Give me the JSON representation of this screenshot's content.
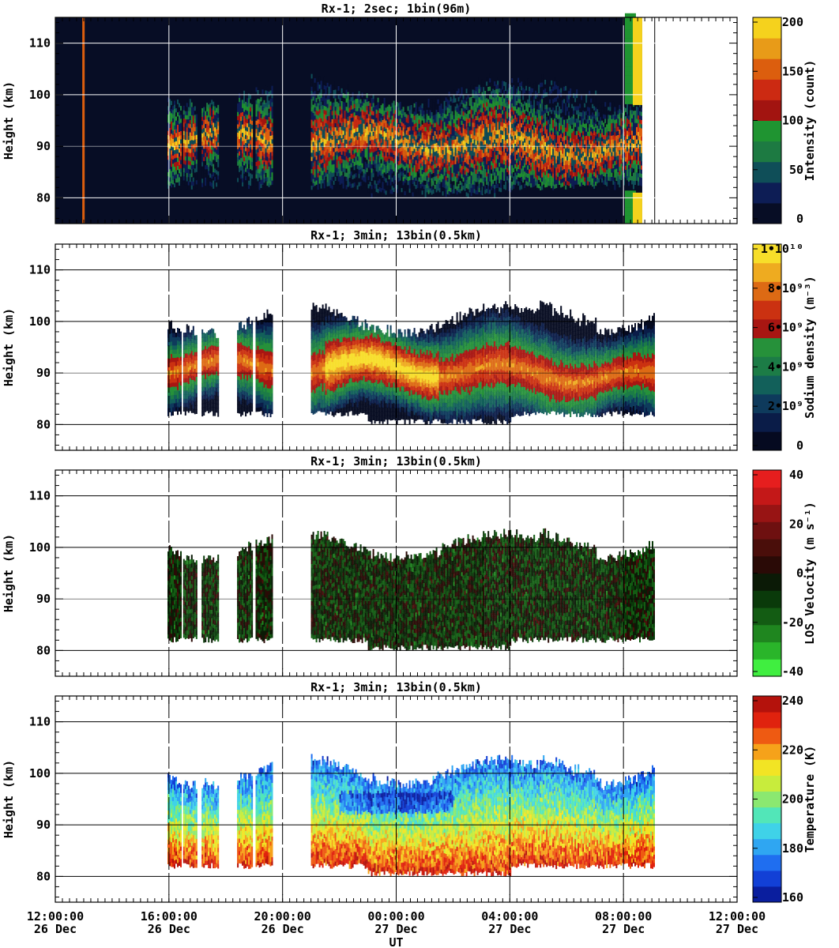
{
  "chart_data": [
    {
      "type": "heatmap",
      "title": "Rx-1;  2sec; 1bin(96m)",
      "ylabel": "Height (km)",
      "ylim": [
        75,
        115
      ],
      "yticks": [
        "110",
        "100",
        "90",
        "80"
      ],
      "colorbar": {
        "label": "Intensity (count)",
        "ticks": [
          "200",
          "150",
          "100",
          "50",
          "0"
        ],
        "colors": [
          "#070d25",
          "#0d1d55",
          "#0f4e58",
          "#1d7a42",
          "#1f9431",
          "#a21410",
          "#cc2a12",
          "#dc5e0e",
          "#e89b18",
          "#f5d21d"
        ]
      },
      "annotations": {
        "layer_top_km": 99,
        "layer_bottom_km": 82,
        "peak_height_km": 90
      }
    },
    {
      "type": "heatmap",
      "title": "Rx-1; 3min; 13bin(0.5km)",
      "ylabel": "Height (km)",
      "ylim": [
        75,
        115
      ],
      "yticks": [
        "110",
        "100",
        "90",
        "80"
      ],
      "colorbar": {
        "label": "Sodium density (m⁻³)",
        "ticks": [
          "1•10¹⁰",
          "8•10⁹",
          "6•10⁹",
          "4•10⁹",
          "2•10⁹",
          "0"
        ],
        "colors": [
          "#050a20",
          "#0a1c48",
          "#0e3a5c",
          "#12605a",
          "#1c7c46",
          "#26913a",
          "#a81612",
          "#cb3111",
          "#dd6a14",
          "#eeab20",
          "#f7de2a"
        ]
      }
    },
    {
      "type": "heatmap",
      "title": "Rx-1; 3min; 13bin(0.5km)",
      "ylabel": "Height (km)",
      "ylim": [
        75,
        115
      ],
      "yticks": [
        "110",
        "100",
        "90",
        "80"
      ],
      "colorbar": {
        "label": "LOS Velocity (m s⁻¹)",
        "ticks": [
          "40",
          "20",
          "0",
          "-20",
          "-40"
        ],
        "colors": [
          "#40ee40",
          "#2ab52a",
          "#1f861f",
          "#135c13",
          "#0a3a0a",
          "#0b1a06",
          "#2a0a06",
          "#4a0e0a",
          "#6e1010",
          "#981414",
          "#c41818",
          "#e61e1e"
        ]
      }
    },
    {
      "type": "heatmap",
      "title": "Rx-1; 3min; 13bin(0.5km)",
      "ylabel": "Height (km)",
      "xlabel": "UT",
      "ylim": [
        75,
        115
      ],
      "yticks": [
        "110",
        "100",
        "90",
        "80"
      ],
      "xticks": [
        {
          "time": "12:00:00",
          "date": "26 Dec"
        },
        {
          "time": "16:00:00",
          "date": "26 Dec"
        },
        {
          "time": "20:00:00",
          "date": "26 Dec"
        },
        {
          "time": "00:00:00",
          "date": "27 Dec"
        },
        {
          "time": "04:00:00",
          "date": "27 Dec"
        },
        {
          "time": "08:00:00",
          "date": "27 Dec"
        },
        {
          "time": "12:00:00",
          "date": "27 Dec"
        }
      ],
      "colorbar": {
        "label": "Temperature (K)",
        "ticks": [
          "240",
          "220",
          "200",
          "180",
          "160"
        ],
        "colors": [
          "#0a1e9e",
          "#1240d6",
          "#1f6ef0",
          "#2fa6f2",
          "#3fd2e8",
          "#52e6b8",
          "#8be870",
          "#c8ec3c",
          "#f2e424",
          "#f6a21a",
          "#ee5a12",
          "#e0220e",
          "#b4120c"
        ]
      }
    }
  ]
}
